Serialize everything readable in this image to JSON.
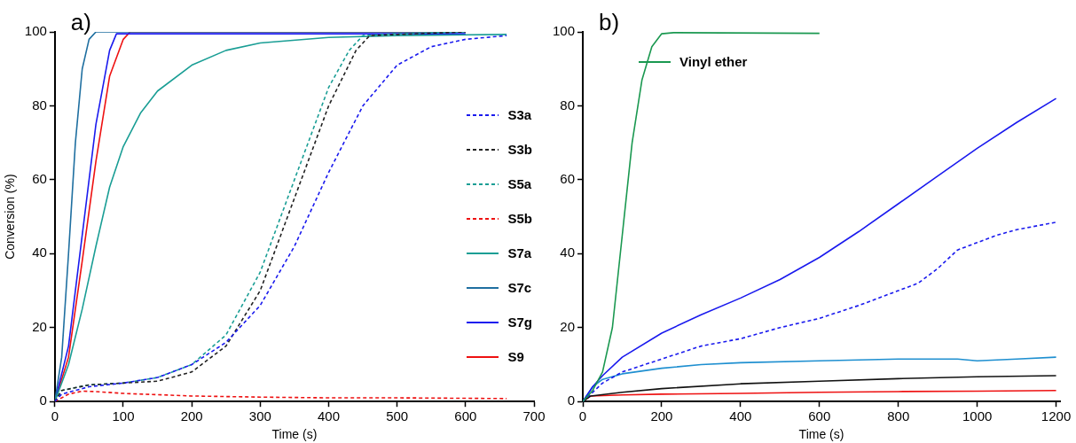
{
  "chart_data": [
    {
      "type": "line",
      "title": "a)",
      "xlabel": "Time (s)",
      "ylabel": "Conversion (%)",
      "xlim": [
        0,
        700
      ],
      "xticks": [
        0,
        100,
        200,
        300,
        400,
        500,
        600,
        700
      ],
      "ylim": [
        0,
        100
      ],
      "yticks": [
        0,
        20,
        40,
        60,
        80,
        100
      ],
      "grid": false,
      "legend": "right",
      "marker": "none",
      "series": [
        {
          "name": "S3a",
          "color": "#1a1aee",
          "line_style": "dashed",
          "x": [
            0,
            10,
            50,
            100,
            150,
            200,
            250,
            300,
            350,
            400,
            450,
            500,
            550,
            600,
            660
          ],
          "values": [
            0,
            2,
            4,
            5,
            6.5,
            10,
            16,
            26,
            42,
            62,
            80,
            91,
            96,
            98,
            99
          ]
        },
        {
          "name": "S3b",
          "color": "#222222",
          "line_style": "dashed",
          "x": [
            0,
            10,
            50,
            100,
            150,
            200,
            250,
            300,
            350,
            400,
            440,
            460,
            600
          ],
          "values": [
            0,
            3,
            4.5,
            5,
            5.5,
            8,
            15,
            30,
            55,
            80,
            95,
            99,
            100
          ]
        },
        {
          "name": "S5a",
          "color": "#1a9e95",
          "line_style": "dashed",
          "x": [
            0,
            10,
            50,
            100,
            150,
            200,
            250,
            300,
            350,
            400,
            430,
            450,
            500,
            600
          ],
          "values": [
            0,
            3,
            4.5,
            5,
            6.5,
            10,
            18,
            35,
            60,
            85,
            95,
            99,
            99.5,
            100
          ]
        },
        {
          "name": "S5b",
          "color": "#ee1111",
          "line_style": "dashed",
          "x": [
            0,
            20,
            40,
            60,
            100,
            200,
            300,
            400,
            500,
            660
          ],
          "values": [
            0,
            2,
            2.8,
            2.7,
            2.2,
            1.5,
            1.2,
            1,
            1,
            0.8
          ]
        },
        {
          "name": "S7a",
          "color": "#1a9e95",
          "line_style": "solid",
          "x": [
            0,
            20,
            40,
            60,
            80,
            100,
            125,
            150,
            200,
            250,
            300,
            400,
            500,
            660
          ],
          "values": [
            0,
            10,
            25,
            42,
            58,
            69,
            78,
            84,
            91,
            95,
            97,
            98.5,
            99,
            99.3
          ]
        },
        {
          "name": "S7c",
          "color": "#1f6fa0",
          "line_style": "solid",
          "x": [
            0,
            10,
            20,
            30,
            40,
            50,
            60,
            600
          ],
          "values": [
            0,
            12,
            40,
            70,
            90,
            98,
            100,
            100
          ]
        },
        {
          "name": "S7g",
          "color": "#1a1aee",
          "line_style": "solid",
          "x": [
            0,
            20,
            40,
            60,
            80,
            90,
            600
          ],
          "values": [
            0,
            15,
            45,
            75,
            95,
            99.5,
            99.5
          ]
        },
        {
          "name": "S9",
          "color": "#ee1111",
          "line_style": "solid",
          "x": [
            0,
            20,
            40,
            60,
            80,
            100,
            110,
            600
          ],
          "values": [
            0,
            12,
            38,
            65,
            88,
            98,
            100,
            100
          ]
        }
      ]
    },
    {
      "type": "line",
      "title": "b)",
      "xlabel": "Time (s)",
      "xlim": [
        0,
        1210
      ],
      "xticks": [
        0,
        200,
        400,
        600,
        800,
        1000,
        1200
      ],
      "ylim": [
        0,
        100
      ],
      "yticks": [
        0,
        20,
        40,
        60,
        80,
        100
      ],
      "grid": false,
      "legend": "top left",
      "marker": "none",
      "series": [
        {
          "name": "Vinyl ether",
          "color": "#1a9850",
          "line_style": "solid",
          "x": [
            0,
            25,
            50,
            75,
            100,
            125,
            150,
            175,
            200,
            230,
            600
          ],
          "values": [
            0,
            3,
            8,
            20,
            45,
            70,
            87,
            96,
            99.5,
            99.8,
            99.6
          ]
        },
        {
          "color": "#1a1aee",
          "line_style": "solid",
          "x": [
            0,
            25,
            50,
            100,
            200,
            300,
            400,
            500,
            600,
            700,
            800,
            900,
            1000,
            1100,
            1200
          ],
          "values": [
            0,
            4,
            7,
            12,
            18.5,
            23.5,
            28,
            33,
            39,
            46,
            53.5,
            61,
            68.5,
            75.5,
            82
          ]
        },
        {
          "color": "#1a1aee",
          "line_style": "dashed",
          "x": [
            0,
            50,
            100,
            200,
            300,
            400,
            500,
            600,
            700,
            800,
            850,
            900,
            950,
            1000,
            1050,
            1100,
            1200
          ],
          "values": [
            0,
            5,
            8,
            11.5,
            15,
            17,
            20,
            22.5,
            26,
            30,
            32,
            36,
            41,
            43,
            45,
            46.5,
            48.5
          ]
        },
        {
          "color": "#1e8fd0",
          "line_style": "solid",
          "x": [
            0,
            25,
            50,
            100,
            200,
            300,
            400,
            600,
            800,
            950,
            1000,
            1100,
            1200
          ],
          "values": [
            0,
            4,
            6,
            7.5,
            9,
            10,
            10.5,
            11,
            11.5,
            11.5,
            11,
            11.5,
            12
          ]
        },
        {
          "color": "#111111",
          "line_style": "solid",
          "x": [
            0,
            20,
            100,
            200,
            400,
            600,
            800,
            1000,
            1200
          ],
          "values": [
            0,
            1.5,
            2.5,
            3.5,
            4.8,
            5.5,
            6.2,
            6.7,
            7
          ]
        },
        {
          "color": "#ee1111",
          "line_style": "solid",
          "x": [
            0,
            20,
            100,
            200,
            400,
            600,
            800,
            1000,
            1200
          ],
          "values": [
            0,
            1.5,
            1.8,
            2,
            2.2,
            2.5,
            2.7,
            2.8,
            3
          ]
        }
      ]
    }
  ]
}
